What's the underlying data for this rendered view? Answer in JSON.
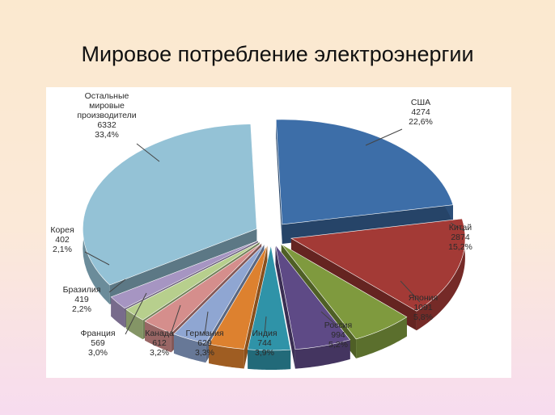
{
  "title": "Мировое потребление электроэнергии",
  "chart_data": {
    "type": "pie",
    "title": "Мировое потребление электроэнергии",
    "categories": [
      "США",
      "Китай",
      "Япония",
      "Россия",
      "Индия",
      "Германия",
      "Канада",
      "Франция",
      "Бразилия",
      "Корея",
      "Остальные мировые производители"
    ],
    "values": [
      4274,
      2874,
      1091,
      994,
      744,
      629,
      612,
      569,
      419,
      402,
      6332
    ],
    "percent_labels": [
      "22,6%",
      "15,2%",
      "5,8%",
      "5,2%",
      "3,9%",
      "3,3%",
      "3,2%",
      "3,0%",
      "2,2%",
      "2,1%",
      "33,4%"
    ],
    "label_lines": [
      [
        "США",
        "4274",
        "22,6%"
      ],
      [
        "Китай",
        "2874",
        "15,2%"
      ],
      [
        "Япония",
        "1091",
        "5,8%"
      ],
      [
        "Россия",
        "994",
        "5,2%"
      ],
      [
        "Индия",
        "744",
        "3,9%"
      ],
      [
        "Германия",
        "629",
        "3,3%"
      ],
      [
        "Канада",
        "612",
        "3,2%"
      ],
      [
        "Франция",
        "569",
        "3,0%"
      ],
      [
        "Бразилия",
        "419",
        "2,2%"
      ],
      [
        "Корея",
        "402",
        "2,1%"
      ],
      [
        "Остальные",
        "мировые",
        "производители",
        "6332",
        "33,4%"
      ]
    ],
    "colors": [
      "#3d6ea8",
      "#a33a36",
      "#7f9a3e",
      "#5e4a86",
      "#2f93a8",
      "#dd812f",
      "#8fa6d2",
      "#d58e8c",
      "#b7cf8d",
      "#a695c2",
      "#94c2d6"
    ],
    "exploded": true,
    "style": "3d"
  }
}
